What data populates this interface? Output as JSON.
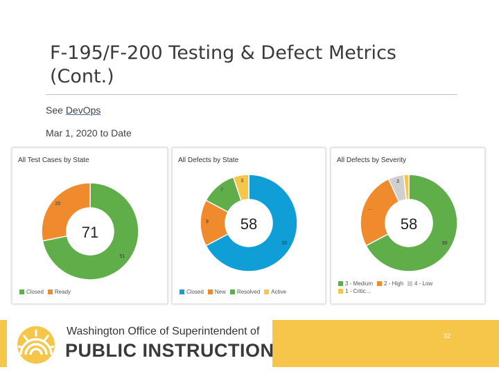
{
  "slide": {
    "title": "F-195/F-200 Testing & Defect Metrics (Cont.)",
    "see_prefix": "See",
    "see_link": "DevOps",
    "date_range": "Mar 1, 2020 to Date",
    "page_number": "32"
  },
  "footer": {
    "org_line1": "Washington Office of Superintendent of",
    "org_line2": "PUBLIC INSTRUCTION",
    "logo_icon": "ospi-sun-logo-icon",
    "band_color": "#f6c64b"
  },
  "chart_data": [
    {
      "type": "pie",
      "title": "All Test Cases by State",
      "total_label": "71",
      "slices": [
        {
          "name": "Closed",
          "value": 51,
          "label": "51",
          "color": "#5fae4a"
        },
        {
          "name": "Ready",
          "value": 20,
          "label": "20",
          "color": "#ef8b2c"
        }
      ],
      "legend": [
        {
          "name": "Closed",
          "color": "#5fae4a"
        },
        {
          "name": "Ready",
          "color": "#ef8b2c"
        }
      ]
    },
    {
      "type": "pie",
      "title": "All Defects by State",
      "total_label": "58",
      "slices": [
        {
          "name": "Closed",
          "value": 39,
          "label": "39",
          "color": "#0f9ed5"
        },
        {
          "name": "New",
          "value": 9,
          "label": "9",
          "color": "#ef8b2c"
        },
        {
          "name": "Resolved",
          "value": 7,
          "label": "7",
          "color": "#5fae4a"
        },
        {
          "name": "Active",
          "value": 3,
          "label": "3",
          "color": "#f6c64b"
        }
      ],
      "legend": [
        {
          "name": "Closed",
          "color": "#0f9ed5"
        },
        {
          "name": "New",
          "color": "#ef8b2c"
        },
        {
          "name": "Resolved",
          "color": "#5fae4a"
        },
        {
          "name": "Active",
          "color": "#f6c64b"
        }
      ]
    },
    {
      "type": "pie",
      "title": "All Defects by Severity",
      "total_label": "58",
      "slices": [
        {
          "name": "3 - Medium",
          "value": 39,
          "label": "39",
          "color": "#5fae4a"
        },
        {
          "name": "2 - High",
          "value": 15,
          "label": "...",
          "color": "#ef8b2c"
        },
        {
          "name": "4 - Low",
          "value": 3,
          "label": "3",
          "color": "#cfcfcf"
        },
        {
          "name": "1 - Critic...",
          "value": 1,
          "label": "",
          "color": "#f6c64b"
        }
      ],
      "legend": [
        {
          "name": "3 - Medium",
          "color": "#5fae4a"
        },
        {
          "name": "2 - High",
          "color": "#ef8b2c"
        },
        {
          "name": "4 - Low",
          "color": "#cfcfcf"
        },
        {
          "name": "1 - Critic...",
          "color": "#f6c64b"
        }
      ]
    }
  ]
}
